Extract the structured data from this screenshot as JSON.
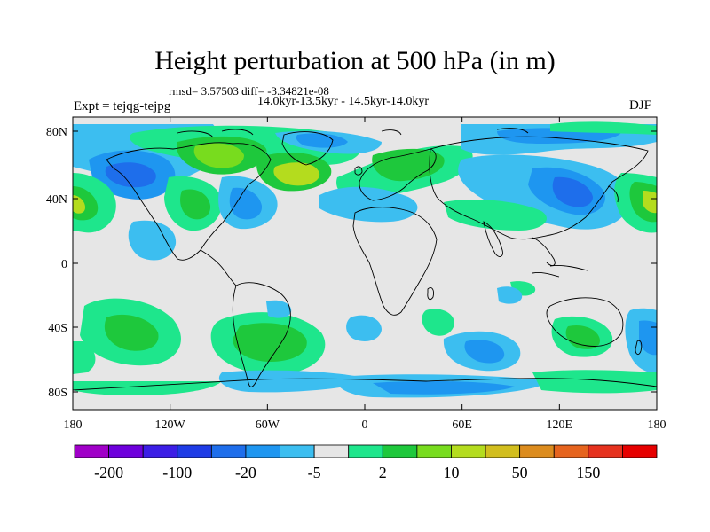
{
  "header": {
    "title": "Height perturbation at 500 hPa (in m)",
    "stats": "rmsd= 3.57503 diff= -3.34821e-08",
    "period": "14.0kyr-13.5kyr - 14.5kyr-14.0kyr",
    "experiment": "Expt = tejqg-tejpg",
    "season": "DJF"
  },
  "axes": {
    "lat_ticks": [
      "80N",
      "40N",
      "0",
      "40S",
      "80S"
    ],
    "lon_ticks": [
      "180",
      "120W",
      "60W",
      "0",
      "60E",
      "120E",
      "180"
    ]
  },
  "colorbar": {
    "colors": [
      "#a000c8",
      "#6e00dc",
      "#3c1ee6",
      "#1e3ce6",
      "#1e6eeb",
      "#1e96f0",
      "#3cbef0",
      "#e6e6e6",
      "#1ee68c",
      "#1ec83c",
      "#78dc1e",
      "#b4dc1e",
      "#d2be1e",
      "#dc8c1e",
      "#e6641e",
      "#e6321e",
      "#e60000"
    ],
    "labels": [
      "-200",
      "-100",
      "-20",
      "-5",
      "2",
      "10",
      "50",
      "150"
    ]
  },
  "map": {
    "ocean_color": "#e6e6e6",
    "coast_color": "#000000"
  }
}
